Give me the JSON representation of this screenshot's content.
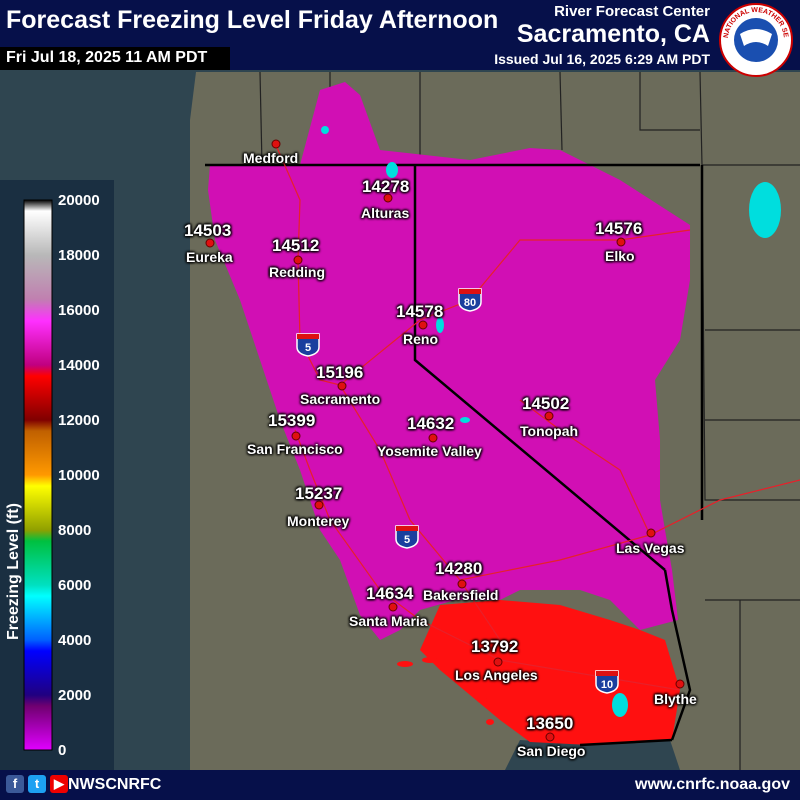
{
  "header": {
    "title": "Forecast Freezing Level Friday Afternoon",
    "valid_time": "Fri Jul 18, 2025 11 AM PDT",
    "agency": "River Forecast Center",
    "office": "Sacramento, CA",
    "issued": "Issued Jul 16, 2025 6:29 AM PDT",
    "logo_text": "NATIONAL WEATHER SERVICE"
  },
  "legend": {
    "title": "Freezing Level (ft)",
    "ticks": [
      "20000",
      "18000",
      "16000",
      "14000",
      "12000",
      "10000",
      "8000",
      "6000",
      "4000",
      "2000",
      "0"
    ]
  },
  "interstates": [
    "80",
    "5",
    "5",
    "10"
  ],
  "stations": [
    {
      "city": "Medford",
      "value": ""
    },
    {
      "city": "Alturas",
      "value": "14278"
    },
    {
      "city": "Eureka",
      "value": "14503"
    },
    {
      "city": "Redding",
      "value": "14512"
    },
    {
      "city": "Elko",
      "value": "14576"
    },
    {
      "city": "Reno",
      "value": "14578"
    },
    {
      "city": "Sacramento",
      "value": "15196"
    },
    {
      "city": "Tonopah",
      "value": "14502"
    },
    {
      "city": "San Francisco",
      "value": "15399"
    },
    {
      "city": "Yosemite Valley",
      "value": "14632"
    },
    {
      "city": "Monterey",
      "value": "15237"
    },
    {
      "city": "Las Vegas",
      "value": ""
    },
    {
      "city": "Bakersfield",
      "value": "14280"
    },
    {
      "city": "Santa Maria",
      "value": "14634"
    },
    {
      "city": "Los Angeles",
      "value": "13792"
    },
    {
      "city": "Blythe",
      "value": ""
    },
    {
      "city": "San Diego",
      "value": "13650"
    }
  ],
  "footer": {
    "handle": "NWSCNRFC",
    "url": "www.cnrfc.noaa.gov"
  },
  "colors": {
    "ocean": "#2f4550",
    "land": "#6b6b5a",
    "freezing_14_16k": "#d10fb4",
    "freezing_12_14k": "#ff0000",
    "header_bg": "#06104a"
  }
}
